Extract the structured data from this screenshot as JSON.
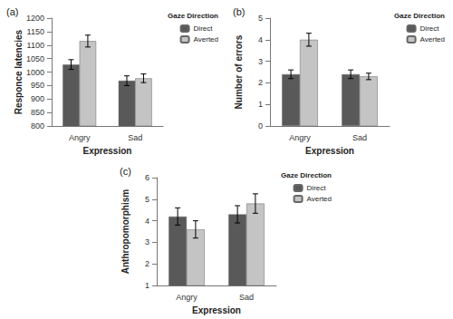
{
  "chart_data": [
    {
      "type": "bar",
      "title": "(a)",
      "x_label": "Expression",
      "y_label": "Responce latencies",
      "legend_title": "Gaze Direction",
      "legend": "upper right",
      "categories": [
        "Angry",
        "Sad"
      ],
      "series": [
        {
          "name": "Direct",
          "color": "#595959",
          "values": [
            1028,
            968
          ],
          "errors": [
            18,
            18
          ]
        },
        {
          "name": "Averted",
          "color": "#c4c4c4",
          "values": [
            1115,
            977
          ],
          "errors": [
            22,
            16
          ]
        }
      ],
      "ylim": [
        800,
        1200
      ],
      "yticks": [
        800,
        850,
        900,
        950,
        1000,
        1050,
        1100,
        1150,
        1200
      ],
      "grid": false
    },
    {
      "type": "bar",
      "title": "(b)",
      "x_label": "Expression",
      "y_label": "Number of errors",
      "legend_title": "Gaze Direction",
      "legend": "upper right",
      "categories": [
        "Angry",
        "Sad"
      ],
      "series": [
        {
          "name": "Direct",
          "color": "#595959",
          "values": [
            2.4,
            2.4
          ],
          "errors": [
            0.2,
            0.2
          ]
        },
        {
          "name": "Averted",
          "color": "#c4c4c4",
          "values": [
            4.0,
            2.3
          ],
          "errors": [
            0.3,
            0.15
          ]
        }
      ],
      "ylim": [
        0,
        5
      ],
      "yticks": [
        0,
        1,
        2,
        3,
        4,
        5
      ],
      "grid": false
    },
    {
      "type": "bar",
      "title": "(c)",
      "x_label": "Expression",
      "y_label": "Anthropomorphism",
      "legend_title": "Gaze Direction",
      "legend": "upper right",
      "categories": [
        "Angry",
        "Sad"
      ],
      "series": [
        {
          "name": "Direct",
          "color": "#595959",
          "values": [
            4.2,
            4.3
          ],
          "errors": [
            0.4,
            0.4
          ]
        },
        {
          "name": "Averted",
          "color": "#c4c4c4",
          "values": [
            3.6,
            4.8
          ],
          "errors": [
            0.4,
            0.45
          ]
        }
      ],
      "ylim": [
        1,
        6
      ],
      "yticks": [
        1,
        2,
        3,
        4,
        5,
        6
      ],
      "grid": false
    }
  ]
}
